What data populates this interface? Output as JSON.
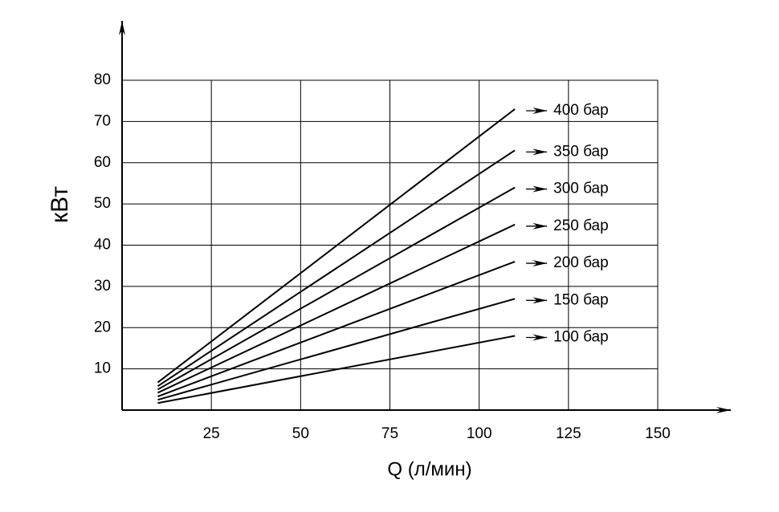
{
  "chart_data": {
    "type": "line",
    "xlabel": "Q (л/мин)",
    "ylabel": "кВт",
    "x": [
      10,
      110
    ],
    "series": [
      {
        "name": "400 бар",
        "color": "#000000",
        "values": [
          6.7,
          73
        ]
      },
      {
        "name": "350 бар",
        "color": "#000000",
        "values": [
          5.8,
          63
        ]
      },
      {
        "name": "300 бар",
        "color": "#000000",
        "values": [
          5,
          54
        ]
      },
      {
        "name": "250 бар",
        "color": "#000000",
        "values": [
          4.2,
          45
        ]
      },
      {
        "name": "200 бар",
        "color": "#000000",
        "values": [
          3.3,
          36
        ]
      },
      {
        "name": "150 бар",
        "color": "#000000",
        "values": [
          2.5,
          27
        ]
      },
      {
        "name": "100 бар",
        "color": "#000000",
        "values": [
          1.7,
          18
        ]
      }
    ],
    "xlim": [
      0,
      150
    ],
    "ylim": [
      0,
      80
    ],
    "xticks": [
      25,
      50,
      75,
      100,
      125,
      150
    ],
    "yticks": [
      10,
      20,
      30,
      40,
      50,
      60,
      70,
      80
    ],
    "grid": true
  }
}
